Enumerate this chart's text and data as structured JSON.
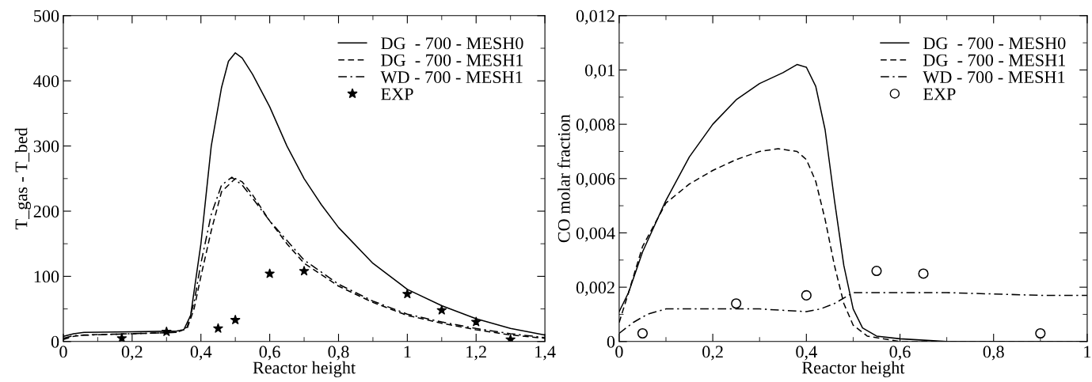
{
  "chart_data": [
    {
      "type": "line",
      "xlabel": "Reactor height",
      "ylabel": "T_gas - T_bed",
      "xlim": [
        0,
        1.4
      ],
      "ylim": [
        0,
        500
      ],
      "xticks": [
        0,
        {
          "value": 0.2,
          "label": "0,2"
        },
        {
          "value": 0.4,
          "label": "0,4"
        },
        {
          "value": 0.6,
          "label": "0,6"
        },
        {
          "value": 0.8,
          "label": "0,8"
        },
        1,
        {
          "value": 1.2,
          "label": "1,2"
        },
        {
          "value": 1.4,
          "label": "1,4"
        }
      ],
      "yticks": [
        0,
        100,
        200,
        300,
        400,
        500
      ],
      "legend": "top right",
      "grid": false,
      "series": [
        {
          "name": "DG  - 700 - MESH0",
          "color": "#000000",
          "line_style": "solid",
          "marker": "none",
          "x": [
            0,
            0.03,
            0.06,
            0.2,
            0.33,
            0.35,
            0.37,
            0.4,
            0.43,
            0.46,
            0.48,
            0.5,
            0.52,
            0.55,
            0.6,
            0.65,
            0.7,
            0.75,
            0.8,
            0.9,
            1.0,
            1.1,
            1.2,
            1.3,
            1.4
          ],
          "values": [
            8,
            12,
            14,
            15,
            16,
            18,
            40,
            150,
            300,
            390,
            430,
            443,
            435,
            410,
            360,
            300,
            250,
            210,
            175,
            120,
            80,
            55,
            35,
            20,
            10
          ]
        },
        {
          "name": "DG  - 700 - MESH1",
          "color": "#000000",
          "line_style": "dashed",
          "marker": "none",
          "x": [
            0,
            0.03,
            0.06,
            0.2,
            0.33,
            0.36,
            0.38,
            0.4,
            0.43,
            0.46,
            0.5,
            0.52,
            0.55,
            0.6,
            0.65,
            0.7,
            0.8,
            0.9,
            1.0,
            1.1,
            1.2,
            1.3,
            1.4
          ],
          "values": [
            3,
            8,
            10,
            12,
            14,
            20,
            50,
            100,
            170,
            230,
            250,
            245,
            225,
            185,
            150,
            120,
            85,
            60,
            40,
            28,
            18,
            10,
            5
          ]
        },
        {
          "name": "WD - 700 - MESH1",
          "color": "#000000",
          "line_style": "dashdot",
          "marker": "none",
          "x": [
            0,
            0.03,
            0.2,
            0.33,
            0.36,
            0.38,
            0.4,
            0.43,
            0.46,
            0.49,
            0.52,
            0.55,
            0.6,
            0.7,
            0.8,
            0.9,
            1.0,
            1.1,
            1.2,
            1.3,
            1.4
          ],
          "values": [
            5,
            9,
            12,
            14,
            22,
            60,
            120,
            195,
            240,
            252,
            240,
            220,
            185,
            125,
            88,
            62,
            42,
            30,
            20,
            12,
            6
          ]
        },
        {
          "name": "EXP",
          "type": "scatter",
          "color": "#000000",
          "marker": "star",
          "x": [
            0.17,
            0.3,
            0.45,
            0.5,
            0.6,
            0.7,
            1.0,
            1.1,
            1.2,
            1.3
          ],
          "values": [
            5,
            15,
            20,
            33,
            104,
            108,
            73,
            48,
            30,
            3
          ]
        }
      ]
    },
    {
      "type": "line",
      "xlabel": "Reactor height",
      "ylabel": "CO molar fraction",
      "xlim": [
        0,
        1
      ],
      "ylim": [
        0,
        0.012
      ],
      "xticks": [
        0,
        {
          "value": 0.2,
          "label": "0,2"
        },
        {
          "value": 0.4,
          "label": "0,4"
        },
        {
          "value": 0.6,
          "label": "0,6"
        },
        {
          "value": 0.8,
          "label": "0,8"
        },
        1
      ],
      "yticks": [
        0,
        {
          "value": 0.002,
          "label": "0,002"
        },
        {
          "value": 0.004,
          "label": "0,004"
        },
        {
          "value": 0.006,
          "label": "0,006"
        },
        {
          "value": 0.008,
          "label": "0,008"
        },
        {
          "value": 0.01,
          "label": "0,01"
        },
        {
          "value": 0.012,
          "label": "0,012"
        }
      ],
      "legend": "top right",
      "grid": false,
      "series": [
        {
          "name": "DG  - 700 - MESH0",
          "color": "#000000",
          "line_style": "solid",
          "marker": "none",
          "x": [
            0,
            0.02,
            0.05,
            0.1,
            0.15,
            0.2,
            0.25,
            0.3,
            0.35,
            0.38,
            0.4,
            0.42,
            0.44,
            0.46,
            0.48,
            0.5,
            0.52,
            0.55,
            0.6,
            0.7,
            1.0
          ],
          "values": [
            0.0011,
            0.0018,
            0.0033,
            0.0052,
            0.0068,
            0.008,
            0.0089,
            0.0095,
            0.0099,
            0.0102,
            0.0101,
            0.0094,
            0.0078,
            0.0052,
            0.0028,
            0.0012,
            0.0005,
            0.0002,
            0.0001,
            0,
            0
          ]
        },
        {
          "name": "DG  - 700 - MESH1",
          "color": "#000000",
          "line_style": "dashed",
          "marker": "none",
          "x": [
            0,
            0.02,
            0.05,
            0.1,
            0.15,
            0.2,
            0.25,
            0.3,
            0.34,
            0.38,
            0.4,
            0.42,
            0.44,
            0.46,
            0.48,
            0.5,
            0.53,
            0.6,
            1.0
          ],
          "values": [
            0.0007,
            0.0018,
            0.0035,
            0.0051,
            0.0058,
            0.0063,
            0.0067,
            0.007,
            0.0071,
            0.007,
            0.0067,
            0.0059,
            0.0045,
            0.0028,
            0.0014,
            0.0006,
            0.0002,
            0,
            0
          ]
        },
        {
          "name": "WD - 700 - MESH1",
          "color": "#000000",
          "line_style": "dashdot",
          "marker": "none",
          "x": [
            0,
            0.03,
            0.06,
            0.1,
            0.2,
            0.3,
            0.4,
            0.43,
            0.46,
            0.5,
            0.55,
            0.7,
            0.9,
            1.0
          ],
          "values": [
            0.0003,
            0.0007,
            0.001,
            0.0012,
            0.0012,
            0.0012,
            0.0011,
            0.0012,
            0.0014,
            0.0018,
            0.0018,
            0.0018,
            0.0017,
            0.0017
          ]
        },
        {
          "name": "EXP",
          "type": "scatter",
          "color": "#000000",
          "marker": "circle",
          "x": [
            0.05,
            0.25,
            0.4,
            0.55,
            0.65,
            0.9
          ],
          "values": [
            0.0003,
            0.0014,
            0.0017,
            0.0026,
            0.0025,
            0.0003
          ]
        }
      ]
    }
  ]
}
